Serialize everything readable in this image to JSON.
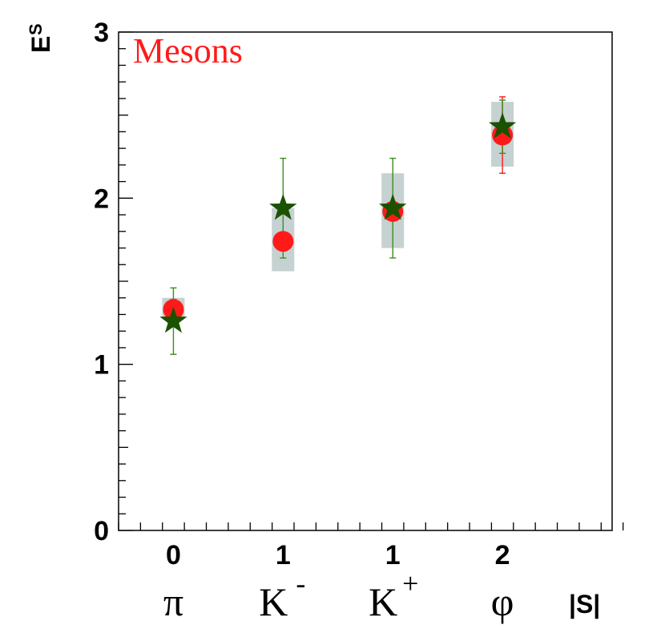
{
  "chart_data": {
    "type": "scatter",
    "title": "Mesons",
    "ylabel": "E",
    "ylabel_superscript": "S",
    "xlabel": "|S|",
    "ylim": [
      0,
      3
    ],
    "xlim": [
      0.5,
      5
    ],
    "y_ticks": [
      "0",
      "1",
      "2",
      "3"
    ],
    "categories": [
      {
        "strangeness": "0",
        "particle": "π",
        "charge": ""
      },
      {
        "strangeness": "1",
        "particle": "K",
        "charge": "-"
      },
      {
        "strangeness": "1",
        "particle": "K",
        "charge": "+"
      },
      {
        "strangeness": "2",
        "particle": "φ",
        "charge": ""
      }
    ],
    "bands": [
      {
        "x": 1,
        "low": 1.28,
        "high": 1.4
      },
      {
        "x": 2,
        "low": 1.56,
        "high": 1.94
      },
      {
        "x": 3,
        "low": 1.7,
        "high": 2.15
      },
      {
        "x": 4,
        "low": 2.19,
        "high": 2.58
      }
    ],
    "series": [
      {
        "marker": "circle",
        "color": "#ff1a1a",
        "points": [
          {
            "x": 1,
            "y": 1.33,
            "err_low": 0.06,
            "err_high": 0.06
          },
          {
            "x": 2,
            "y": 1.74,
            "err_low": 0.04,
            "err_high": 0.04
          },
          {
            "x": 3,
            "y": 1.92,
            "err_low": 0.05,
            "err_high": 0.05
          },
          {
            "x": 4,
            "y": 2.38,
            "err_low": 0.23,
            "err_high": 0.23
          }
        ]
      },
      {
        "marker": "star",
        "color": "#1a5200",
        "error_color": "#3c8c1e",
        "points": [
          {
            "x": 1,
            "y": 1.26,
            "err_low": 0.2,
            "err_high": 0.2
          },
          {
            "x": 2,
            "y": 1.94,
            "err_low": 0.3,
            "err_high": 0.3
          },
          {
            "x": 3,
            "y": 1.94,
            "err_low": 0.3,
            "err_high": 0.3
          },
          {
            "x": 4,
            "y": 2.43,
            "err_low": 0.16,
            "err_high": 0.16
          }
        ]
      }
    ],
    "band_color": "#c6d1d1",
    "grid": false
  }
}
